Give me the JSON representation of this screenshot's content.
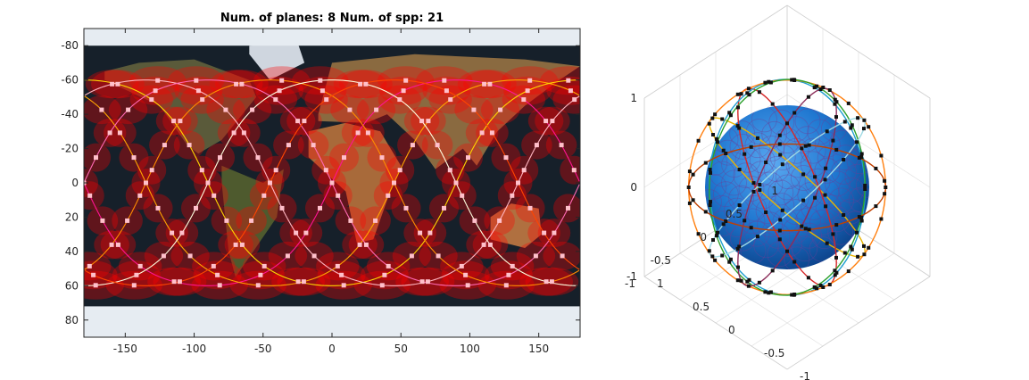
{
  "chart_data": [
    {
      "type": "scatter",
      "title": "Num. of planes: 8 Num. of spp: 21",
      "xlabel": "",
      "ylabel": "",
      "xlim": [
        -180,
        180
      ],
      "ylim": [
        -90,
        90
      ],
      "y_reversed": true,
      "xticks": [
        -150,
        -100,
        -50,
        0,
        50,
        100,
        150
      ],
      "yticks": [
        -80,
        -60,
        -40,
        -20,
        0,
        20,
        40,
        60,
        80
      ],
      "background": "world-map",
      "num_planes": 8,
      "sats_per_plane": 21,
      "inclination_deg": 60,
      "plane_colors": [
        "#ff1493",
        "#ffa500",
        "#ffd700",
        "#ffb6c1",
        "#ff69b4",
        "#ff8c00",
        "#ffffe0",
        "#ff4500"
      ],
      "footprint_color": "#ff0000",
      "satellite_marker_color": "#ffc0cb"
    },
    {
      "type": "scatter",
      "title": "",
      "view": "3d",
      "xlim": [
        -1,
        1
      ],
      "ylim": [
        -1,
        1
      ],
      "zlim": [
        -1,
        1
      ],
      "xticks": [
        -1,
        -0.5,
        0,
        0.5,
        1
      ],
      "yticks": [
        -1,
        -0.5,
        0,
        0.5,
        1
      ],
      "zticks": [
        -1,
        0,
        1
      ],
      "sphere_color": "#1f77d0",
      "orbit_colors": [
        "#e8b400",
        "#d62728",
        "#1f9fd0",
        "#ff7f0e",
        "#2ca02c",
        "#8c2d5a",
        "#9edae5",
        "#c04000"
      ],
      "satellite_marker_color": "#111111"
    }
  ]
}
